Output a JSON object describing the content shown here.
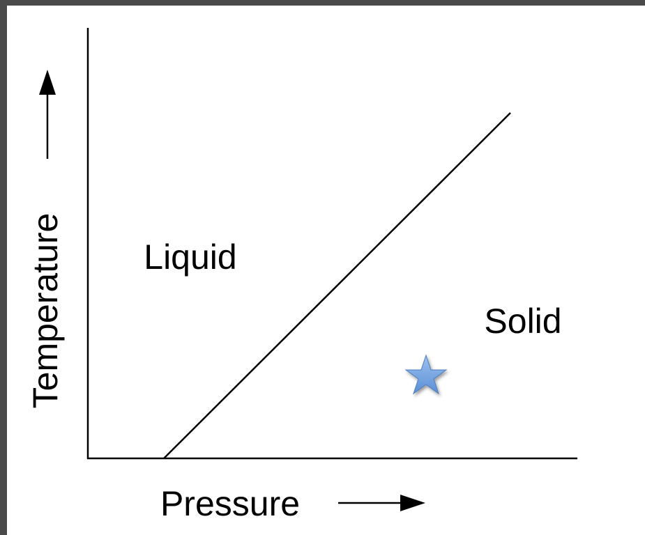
{
  "axes": {
    "y_label": "Temperature",
    "x_label": "Pressure"
  },
  "regions": [
    {
      "label": "Liquid"
    },
    {
      "label": "Solid"
    }
  ]
}
